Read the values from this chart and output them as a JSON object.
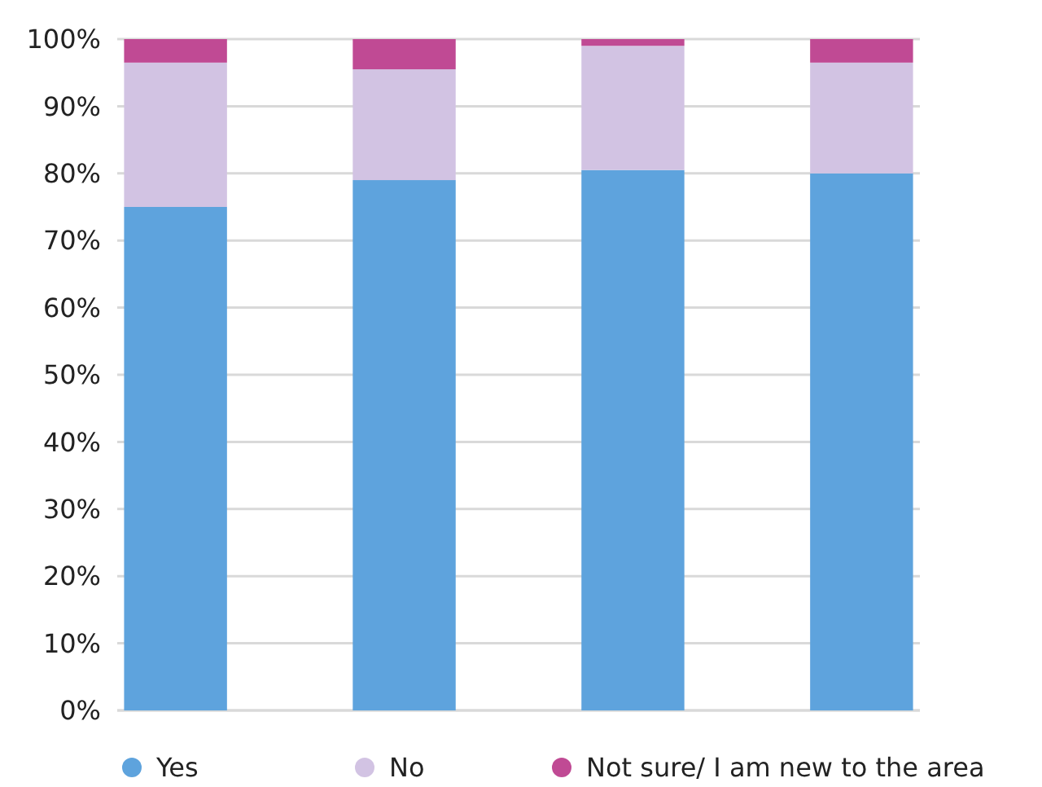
{
  "chart_data": {
    "type": "bar",
    "stacked": true,
    "categories": [
      null,
      null,
      null,
      null
    ],
    "series": [
      {
        "name": "Yes",
        "color": "#5ea3dd",
        "values": [
          75,
          79,
          80.5,
          80
        ]
      },
      {
        "name": "No",
        "color": "#d2c3e3",
        "values": [
          21.5,
          16.5,
          18.5,
          16.5
        ]
      },
      {
        "name": "Not sure/ I am new to the area",
        "color": "#c04a94",
        "values": [
          3.5,
          4.5,
          1,
          3.5
        ]
      }
    ],
    "ylim": [
      0,
      100
    ],
    "yticks": [
      {
        "value": 0,
        "label": "0%"
      },
      {
        "value": 10,
        "label": "10%"
      },
      {
        "value": 20,
        "label": "20%"
      },
      {
        "value": 30,
        "label": "30%"
      },
      {
        "value": 40,
        "label": "40%"
      },
      {
        "value": 50,
        "label": "50%"
      },
      {
        "value": 60,
        "label": "60%"
      },
      {
        "value": 70,
        "label": "70%"
      },
      {
        "value": 80,
        "label": "80%"
      },
      {
        "value": 90,
        "label": "90%"
      },
      {
        "value": 100,
        "label": "100%"
      }
    ],
    "grid": "y",
    "legend": "bottom"
  }
}
